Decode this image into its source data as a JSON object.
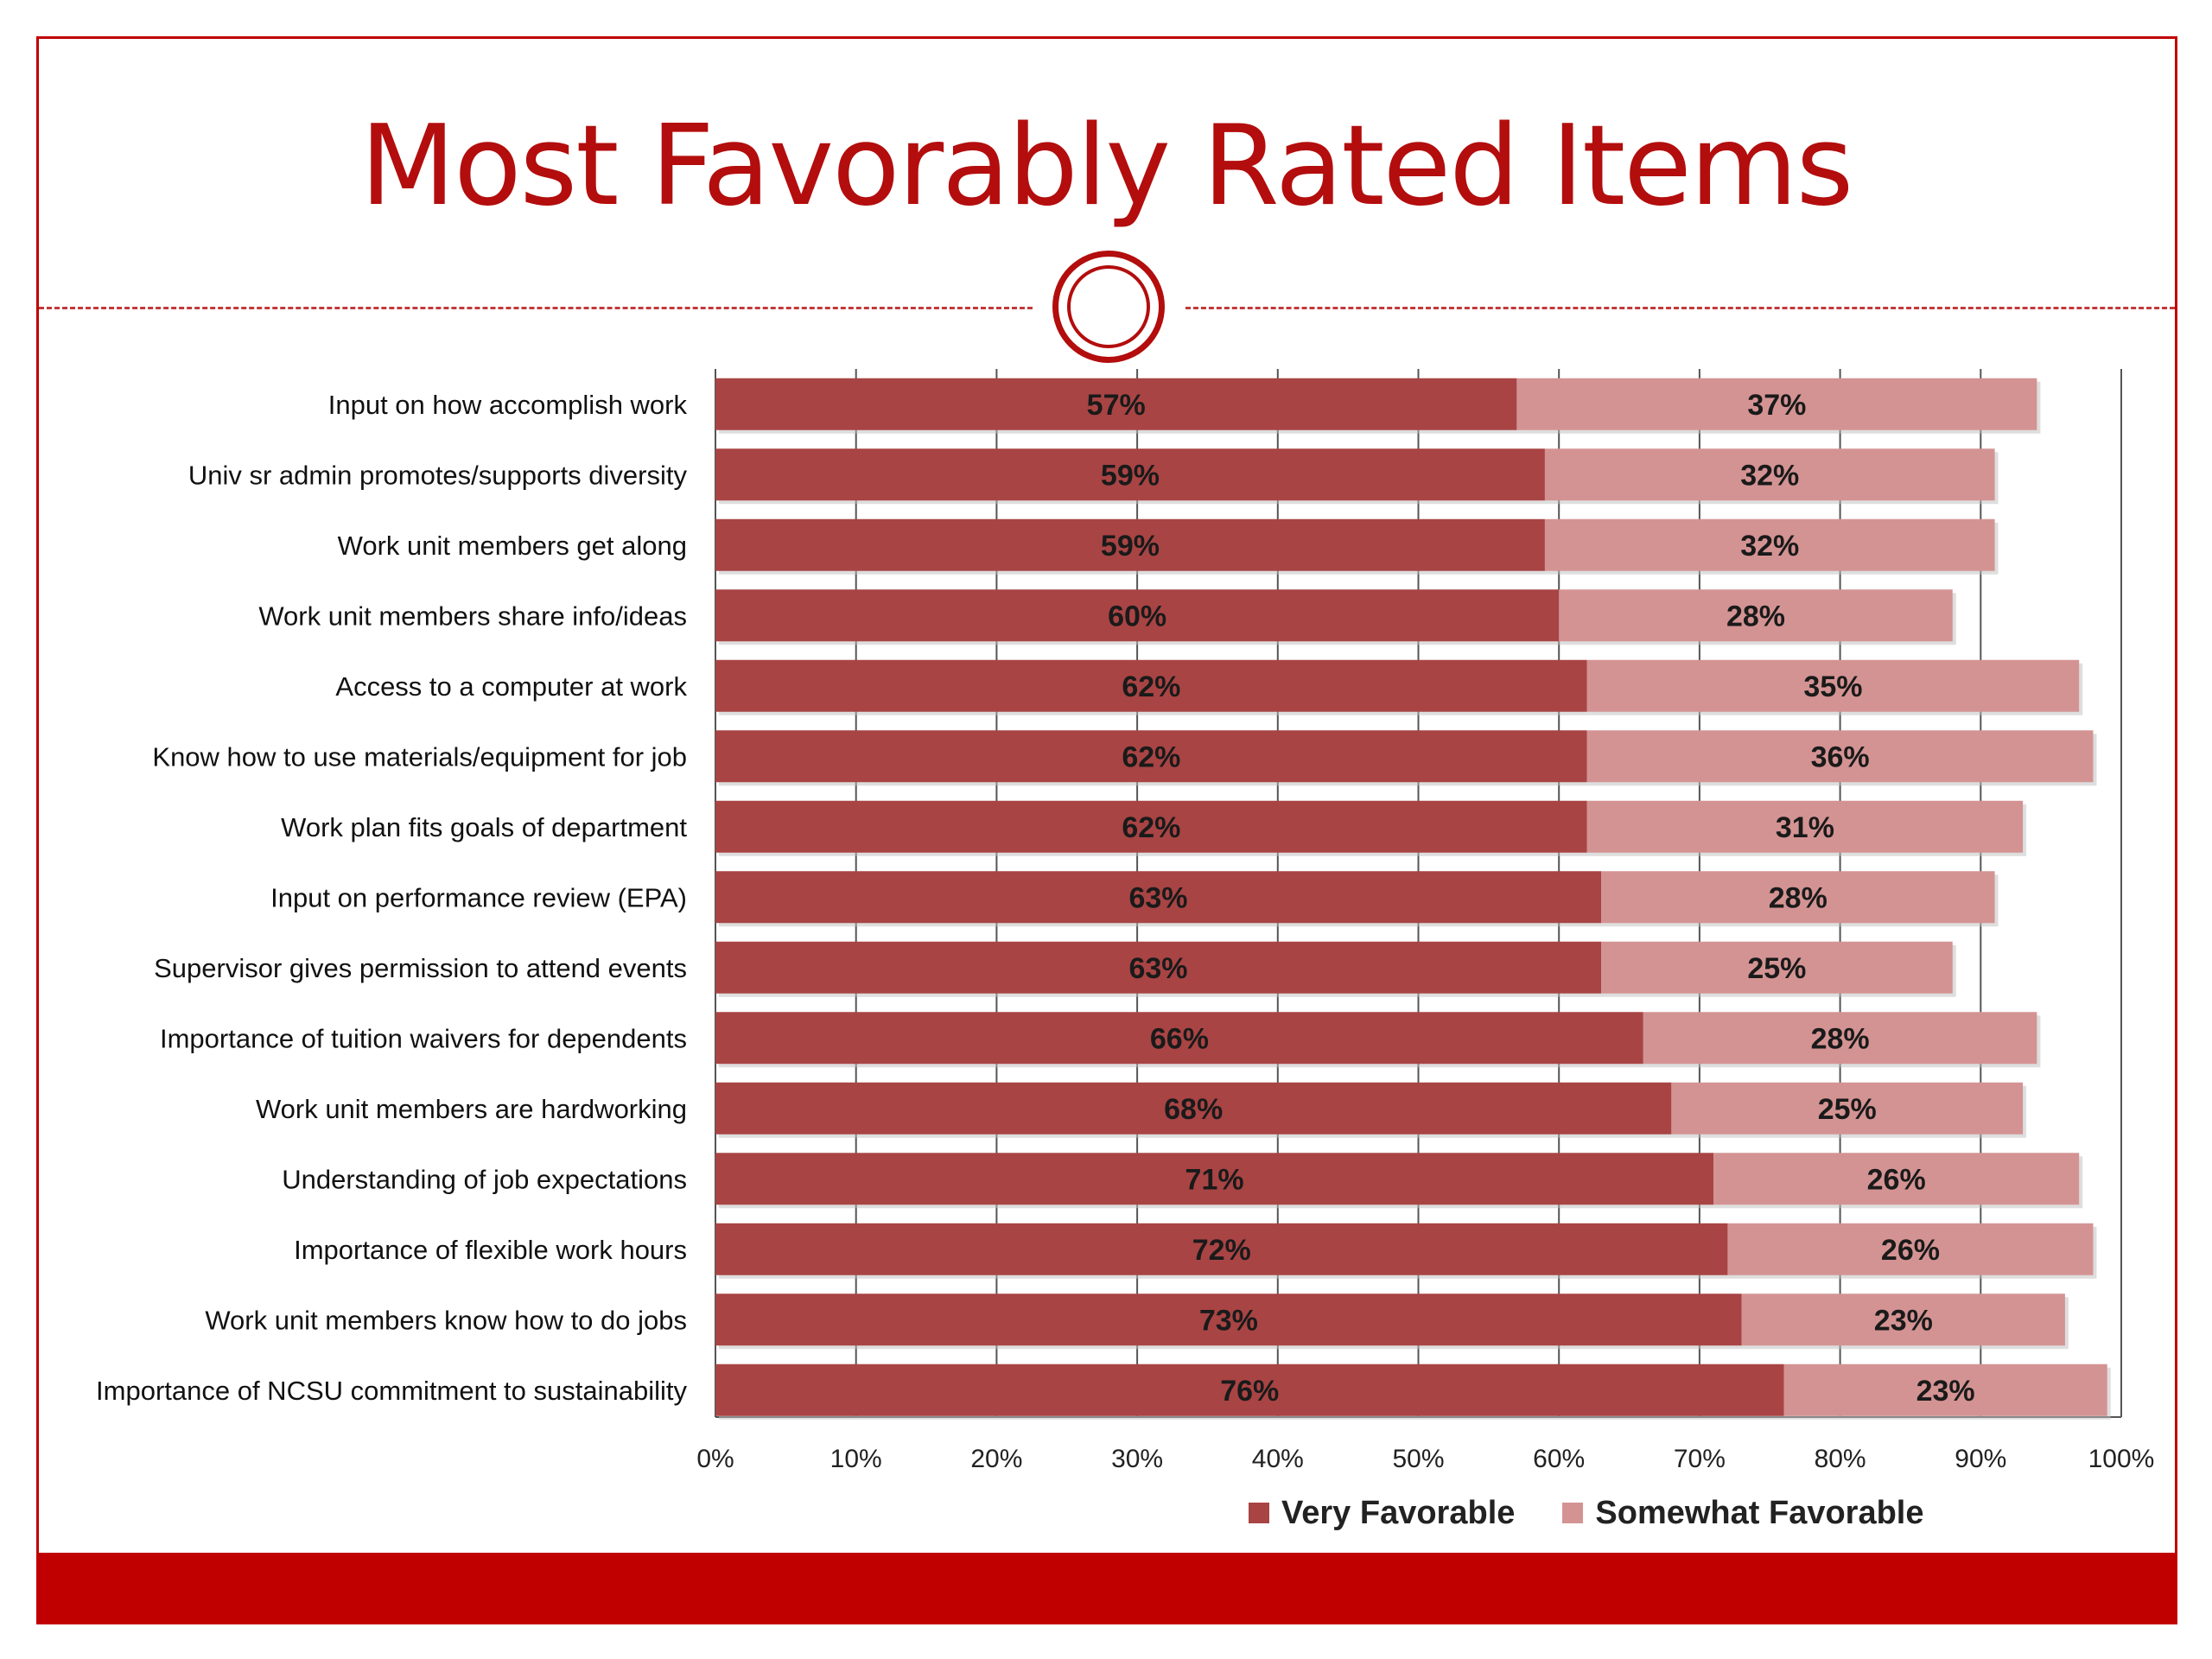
{
  "page": {
    "title": "Most Favorably Rated Items",
    "colors": {
      "accent": "#b30d0d",
      "band": "#c00000"
    }
  },
  "chart_data": {
    "type": "bar",
    "orientation": "horizontal",
    "stacked": true,
    "categories": [
      "Input on how accomplish work",
      "Univ sr admin promotes/supports diversity",
      "Work unit members get along",
      "Work unit members share info/ideas",
      "Access to a computer at work",
      "Know how to use materials/equipment for job",
      "Work plan fits goals of department",
      "Input on performance review (EPA)",
      "Supervisor gives permission to attend events",
      "Importance of tuition waivers for dependents",
      "Work unit members are hardworking",
      "Understanding of job expectations",
      "Importance of flexible work hours",
      "Work unit members know how to do jobs",
      "Importance of NCSU commitment to sustainability"
    ],
    "series": [
      {
        "name": "Very Favorable",
        "color": "#a94444",
        "values": [
          57,
          59,
          59,
          60,
          62,
          62,
          62,
          63,
          63,
          66,
          68,
          71,
          72,
          73,
          76
        ],
        "labels": [
          "57%",
          "59%",
          "59%",
          "60%",
          "62%",
          "62%",
          "62%",
          "63%",
          "63%",
          "66%",
          "68%",
          "71%",
          "72%",
          "73%",
          "76%"
        ]
      },
      {
        "name": "Somewhat Favorable",
        "color": "#d49393",
        "values": [
          37,
          32,
          32,
          28,
          35,
          36,
          31,
          28,
          25,
          28,
          25,
          26,
          26,
          23,
          23
        ],
        "labels": [
          "37%",
          "32%",
          "32%",
          "28%",
          "35%",
          "36%",
          "31%",
          "28%",
          "25%",
          "28%",
          "25%",
          "26%",
          "26%",
          "23%",
          "23%"
        ]
      }
    ],
    "xlim": [
      0,
      100
    ],
    "x_ticks": [
      "0%",
      "10%",
      "20%",
      "30%",
      "40%",
      "50%",
      "60%",
      "70%",
      "80%",
      "90%",
      "100%"
    ],
    "grid": true,
    "legend_position": "bottom-right"
  }
}
